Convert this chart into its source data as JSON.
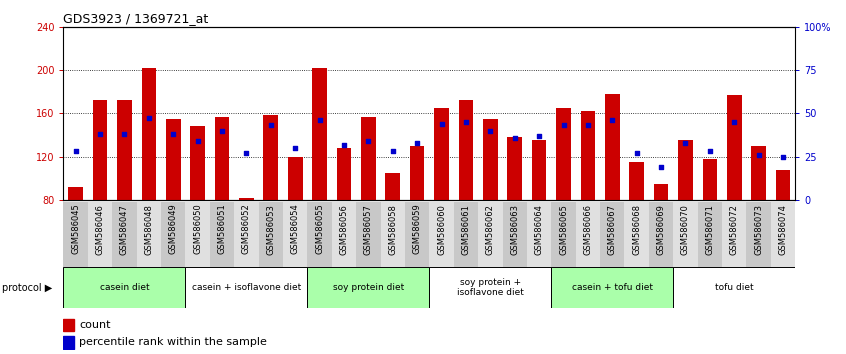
{
  "title": "GDS3923 / 1369721_at",
  "samples": [
    "GSM586045",
    "GSM586046",
    "GSM586047",
    "GSM586048",
    "GSM586049",
    "GSM586050",
    "GSM586051",
    "GSM586052",
    "GSM586053",
    "GSM586054",
    "GSM586055",
    "GSM586056",
    "GSM586057",
    "GSM586058",
    "GSM586059",
    "GSM586060",
    "GSM586061",
    "GSM586062",
    "GSM586063",
    "GSM586064",
    "GSM586065",
    "GSM586066",
    "GSM586067",
    "GSM586068",
    "GSM586069",
    "GSM586070",
    "GSM586071",
    "GSM586072",
    "GSM586073",
    "GSM586074"
  ],
  "counts": [
    92,
    172,
    172,
    202,
    155,
    148,
    157,
    82,
    158,
    120,
    202,
    128,
    157,
    105,
    130,
    165,
    172,
    155,
    138,
    135,
    165,
    162,
    178,
    115,
    95,
    135,
    118,
    177,
    130,
    108
  ],
  "percentile_ranks": [
    28,
    38,
    38,
    47,
    38,
    34,
    40,
    27,
    43,
    30,
    46,
    32,
    34,
    28,
    33,
    44,
    45,
    40,
    36,
    37,
    43,
    43,
    46,
    27,
    19,
    33,
    28,
    45,
    26,
    25
  ],
  "groups": [
    {
      "label": "casein diet",
      "start": 0,
      "end": 5,
      "color": "#aaffaa"
    },
    {
      "label": "casein + isoflavone diet",
      "start": 5,
      "end": 10,
      "color": "#ffffff"
    },
    {
      "label": "soy protein diet",
      "start": 10,
      "end": 15,
      "color": "#aaffaa"
    },
    {
      "label": "soy protein +\nisoflavone diet",
      "start": 15,
      "end": 20,
      "color": "#ffffff"
    },
    {
      "label": "casein + tofu diet",
      "start": 20,
      "end": 25,
      "color": "#aaffaa"
    },
    {
      "label": "tofu diet",
      "start": 25,
      "end": 30,
      "color": "#ffffff"
    }
  ],
  "bar_color": "#cc0000",
  "dot_color": "#0000cc",
  "ylim_left": [
    80,
    240
  ],
  "yticks_left": [
    80,
    120,
    160,
    200,
    240
  ],
  "ylim_right": [
    0,
    100
  ],
  "yticks_right": [
    0,
    25,
    50,
    75,
    100
  ],
  "bar_width": 0.6,
  "protocol_label": "protocol",
  "legend_count_label": "count",
  "legend_pct_label": "percentile rank within the sample"
}
